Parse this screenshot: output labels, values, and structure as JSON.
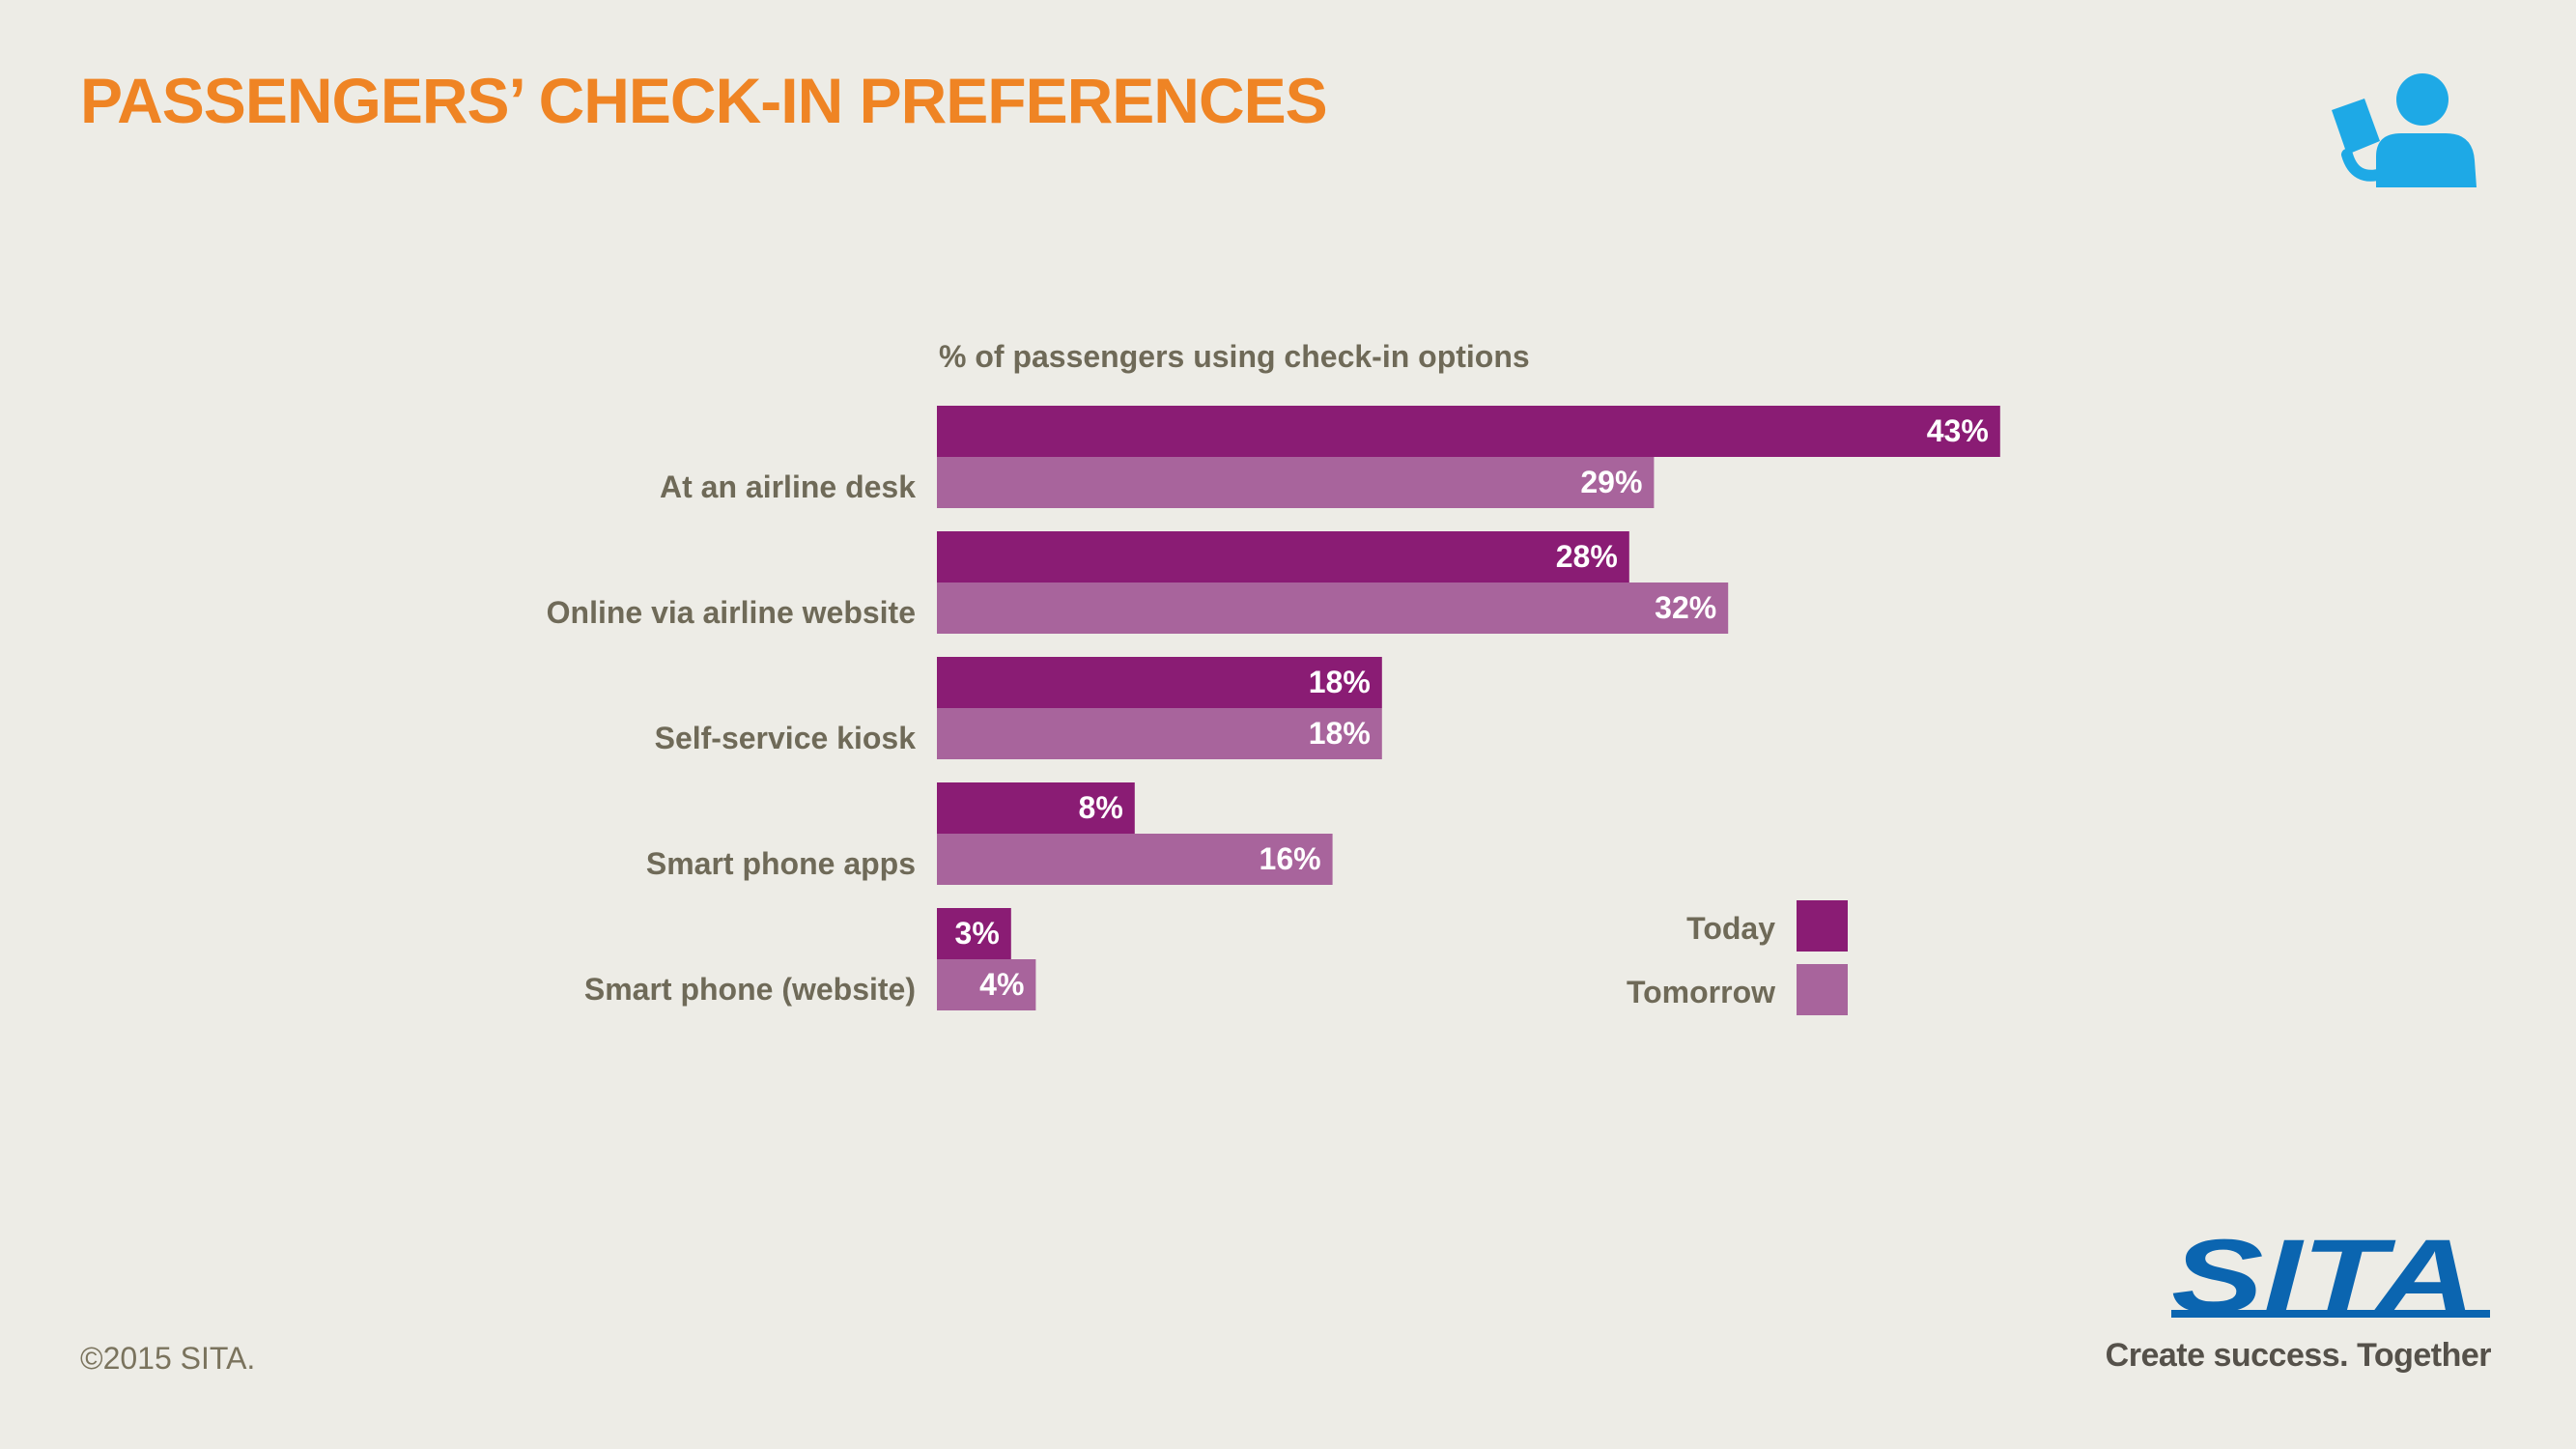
{
  "header": {
    "title": "PASSENGERS’ CHECK-IN PREFERENCES",
    "icon": "person-reading-icon"
  },
  "colors": {
    "background": "#edece6",
    "title": "#ef8424",
    "today": "#8a1c74",
    "tomorrow": "#a8649c",
    "label": "#6f6a58",
    "icon": "#1ea9e6",
    "sita_blue": "#0b65b0"
  },
  "chart_data": {
    "type": "bar",
    "orientation": "horizontal",
    "title": "% of passengers using check-in options",
    "categories": [
      "At an airline desk",
      "Online via airline website",
      "Self-service kiosk",
      "Smart phone apps",
      "Smart phone (website)"
    ],
    "series": [
      {
        "name": "Today",
        "values": [
          43,
          28,
          18,
          8,
          3
        ],
        "color": "#8a1c74"
      },
      {
        "name": "Tomorrow",
        "values": [
          29,
          32,
          18,
          16,
          4
        ],
        "color": "#a8649c"
      }
    ],
    "value_suffix": "%",
    "xlim": [
      0,
      43
    ],
    "grid": false,
    "legend": "bottom-right"
  },
  "footer": {
    "copyright": "©2015 SITA.",
    "logo_text": "SITA",
    "tagline": "Create success. Together"
  }
}
